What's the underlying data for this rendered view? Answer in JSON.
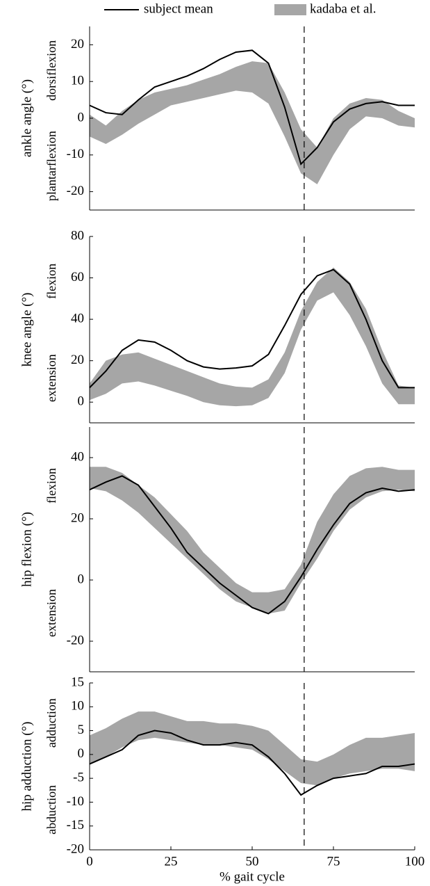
{
  "chart_data": [
    {
      "type": "line",
      "ylabel": "ankle angle (°)",
      "annotations": [
        "dorsiflexion",
        "plantarflexion"
      ],
      "x": [
        0,
        5,
        10,
        15,
        20,
        25,
        30,
        35,
        40,
        45,
        50,
        55,
        60,
        65,
        70,
        75,
        80,
        85,
        90,
        95,
        100
      ],
      "series": [
        {
          "name": "subject mean",
          "color": "#000000",
          "values": [
            3.5,
            1.5,
            1,
            5,
            8.5,
            10,
            11.5,
            13.5,
            16,
            18,
            18.5,
            15,
            3,
            -12.5,
            -8,
            -1,
            2.5,
            4,
            4.5,
            3.5,
            3.5
          ]
        }
      ],
      "band": {
        "name": "kadaba et al.",
        "color": "#a6a6a6",
        "upper": [
          1,
          -2,
          2,
          5,
          7,
          8,
          9,
          10.5,
          12,
          14,
          15.5,
          15,
          7,
          -3,
          -8,
          0,
          4,
          5.5,
          5,
          2,
          0
        ],
        "lower": [
          -5,
          -7,
          -4.5,
          -1.5,
          1,
          3.5,
          4.5,
          5.5,
          6.5,
          7.5,
          7,
          4,
          -5,
          -15,
          -18,
          -10,
          -3,
          0.5,
          0,
          -2,
          -2.5
        ]
      },
      "vline_x": 66,
      "xlim": [
        0,
        100
      ],
      "ylim": [
        -25,
        25
      ],
      "yticks": [
        -20,
        -10,
        0,
        10,
        20
      ]
    },
    {
      "type": "line",
      "ylabel": "knee angle (°)",
      "annotations": [
        "flexion",
        "extension"
      ],
      "x": [
        0,
        5,
        10,
        15,
        20,
        25,
        30,
        35,
        40,
        45,
        50,
        55,
        60,
        65,
        70,
        75,
        80,
        85,
        90,
        95,
        100
      ],
      "series": [
        {
          "color": "#000000",
          "values": [
            7,
            15,
            25,
            30,
            29,
            25,
            20,
            17,
            16,
            16.5,
            17.5,
            23,
            37,
            52,
            61,
            64,
            57,
            40,
            20,
            7,
            7
          ]
        }
      ],
      "band": {
        "color": "#a6a6a6",
        "upper": [
          9,
          20,
          23,
          24,
          21,
          18,
          15,
          12,
          9,
          7.5,
          7,
          11,
          24,
          44,
          58,
          65,
          58,
          45,
          25,
          8,
          7
        ],
        "lower": [
          1,
          4,
          9,
          10,
          8,
          5.5,
          3,
          0,
          -1.5,
          -2,
          -1.5,
          2,
          14,
          35,
          49,
          53,
          42,
          27,
          9,
          -1,
          -1
        ]
      },
      "vline_x": 66,
      "xlim": [
        0,
        100
      ],
      "ylim": [
        -10,
        80
      ],
      "yticks": [
        0,
        20,
        40,
        60,
        80
      ]
    },
    {
      "type": "line",
      "ylabel": "hip flexion (°)",
      "annotations": [
        "flexion",
        "extension"
      ],
      "x": [
        0,
        5,
        10,
        15,
        20,
        25,
        30,
        35,
        40,
        45,
        50,
        55,
        60,
        65,
        70,
        75,
        80,
        85,
        90,
        95,
        100
      ],
      "series": [
        {
          "color": "#000000",
          "values": [
            29.5,
            32,
            34,
            31,
            24,
            17,
            9,
            4,
            -1,
            -5,
            -9,
            -11,
            -7,
            1,
            10,
            18,
            25,
            28.5,
            30,
            29,
            29.5
          ]
        }
      ],
      "band": {
        "color": "#a6a6a6",
        "upper": [
          37,
          37,
          35,
          31,
          27,
          21.5,
          16,
          9,
          4,
          -1,
          -4,
          -4,
          -3,
          5,
          19,
          28,
          34,
          36.5,
          37,
          36,
          36
        ],
        "lower": [
          30,
          29,
          26,
          22,
          17,
          12,
          7,
          2,
          -3,
          -7,
          -9,
          -11,
          -10,
          -1,
          7,
          16,
          23,
          27,
          29,
          29.5,
          29
        ]
      },
      "vline_x": 66,
      "xlim": [
        0,
        100
      ],
      "ylim": [
        -30,
        50
      ],
      "yticks": [
        -20,
        0,
        20,
        40
      ]
    },
    {
      "type": "line",
      "ylabel": "hip adduction (°)",
      "annotations": [
        "adduction",
        "abduction"
      ],
      "xlabel": "% gait cycle",
      "x": [
        0,
        5,
        10,
        15,
        20,
        25,
        30,
        35,
        40,
        45,
        50,
        55,
        60,
        65,
        70,
        75,
        80,
        85,
        90,
        95,
        100
      ],
      "series": [
        {
          "color": "#000000",
          "values": [
            -2,
            -0.5,
            1,
            4,
            5,
            4.5,
            3,
            2,
            2,
            2.5,
            2,
            -0.5,
            -4,
            -8.5,
            -6.5,
            -5,
            -4.5,
            -4,
            -2.5,
            -2.5,
            -2
          ]
        }
      ],
      "band": {
        "color": "#a6a6a6",
        "upper": [
          4,
          5.5,
          7.5,
          9,
          9,
          8,
          7,
          7,
          6.5,
          6.5,
          6,
          5,
          2,
          -1,
          -1.5,
          0,
          2,
          3.5,
          3.5,
          4,
          4.5
        ],
        "lower": [
          -2,
          -0.5,
          1.5,
          3,
          3.5,
          3,
          2.5,
          2,
          2,
          1.5,
          1,
          -1,
          -3.5,
          -6,
          -6.5,
          -5,
          -4,
          -3.5,
          -3,
          -3,
          -3.5
        ]
      },
      "vline_x": 66,
      "xlim": [
        0,
        100
      ],
      "ylim": [
        -20,
        15
      ],
      "yticks": [
        -20,
        -15,
        -10,
        -5,
        0,
        5,
        10,
        15
      ],
      "xticks": [
        0,
        25,
        50,
        75,
        100
      ]
    }
  ]
}
